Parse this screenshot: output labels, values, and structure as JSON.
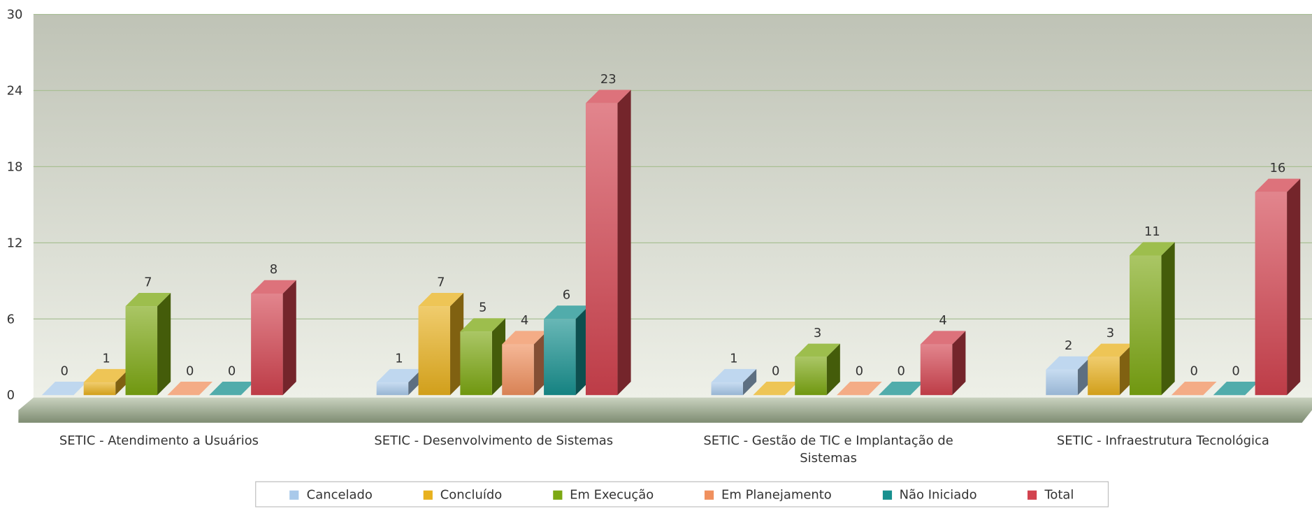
{
  "chart_data": {
    "type": "bar3d",
    "categories": [
      "SETIC - Atendimento a Usuários",
      "SETIC - Desenvolvimento de Sistemas",
      "SETIC - Gestão de TIC e Implantação de Sistemas",
      "SETIC - Infraestrutura Tecnológica"
    ],
    "series": [
      {
        "name": "Cancelado",
        "color": "#a9c9ea",
        "values": [
          0,
          1,
          1,
          2
        ]
      },
      {
        "name": "Concluído",
        "color": "#e8b11e",
        "values": [
          1,
          7,
          0,
          3
        ]
      },
      {
        "name": "Em Execução",
        "color": "#7ca812",
        "values": [
          7,
          5,
          3,
          11
        ]
      },
      {
        "name": "Em Planejamento",
        "color": "#f0905e",
        "values": [
          0,
          4,
          0,
          0
        ]
      },
      {
        "name": "Não Iniciado",
        "color": "#17908f",
        "values": [
          0,
          6,
          0,
          0
        ]
      },
      {
        "name": "Total",
        "color": "#d2434f",
        "values": [
          8,
          23,
          4,
          16
        ]
      }
    ],
    "ylim": [
      0,
      30
    ],
    "yticks": [
      0,
      6,
      12,
      18,
      24,
      30
    ],
    "grid": true,
    "legend": "bottom"
  }
}
